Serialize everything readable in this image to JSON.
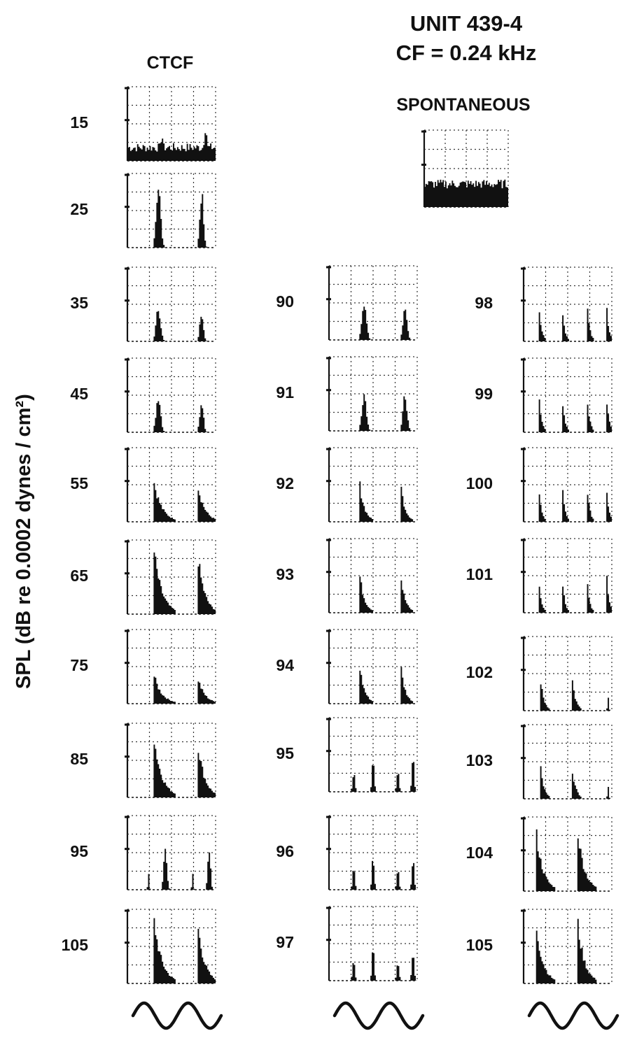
{
  "chart_data": {
    "type": "bar",
    "title": "UNIT 439-4",
    "subtitle": "CF = 0.24 kHz",
    "ylabel": "SPL (dB re 0.0002 dynes / cm²)",
    "panel_groups": [
      {
        "heading": "CTCF",
        "levels": [
          "15",
          "25",
          "35",
          "45",
          "55",
          "65",
          "75",
          "85",
          "95",
          "105"
        ],
        "stimulus": "sine-wave-icon"
      },
      {
        "heading": "",
        "levels": [
          "90",
          "91",
          "92",
          "93",
          "94",
          "95",
          "96",
          "97"
        ],
        "stimulus": "sine-wave-icon"
      },
      {
        "heading": "",
        "levels": [
          "98",
          "99",
          "100",
          "101",
          "102",
          "103",
          "104",
          "105"
        ],
        "stimulus": "sine-wave-icon"
      }
    ],
    "spontaneous": {
      "heading": "SPONTANEOUS"
    },
    "grid": true,
    "colors": {
      "ink": "#111111",
      "grid": "#333333",
      "background": "#ffffff"
    }
  }
}
